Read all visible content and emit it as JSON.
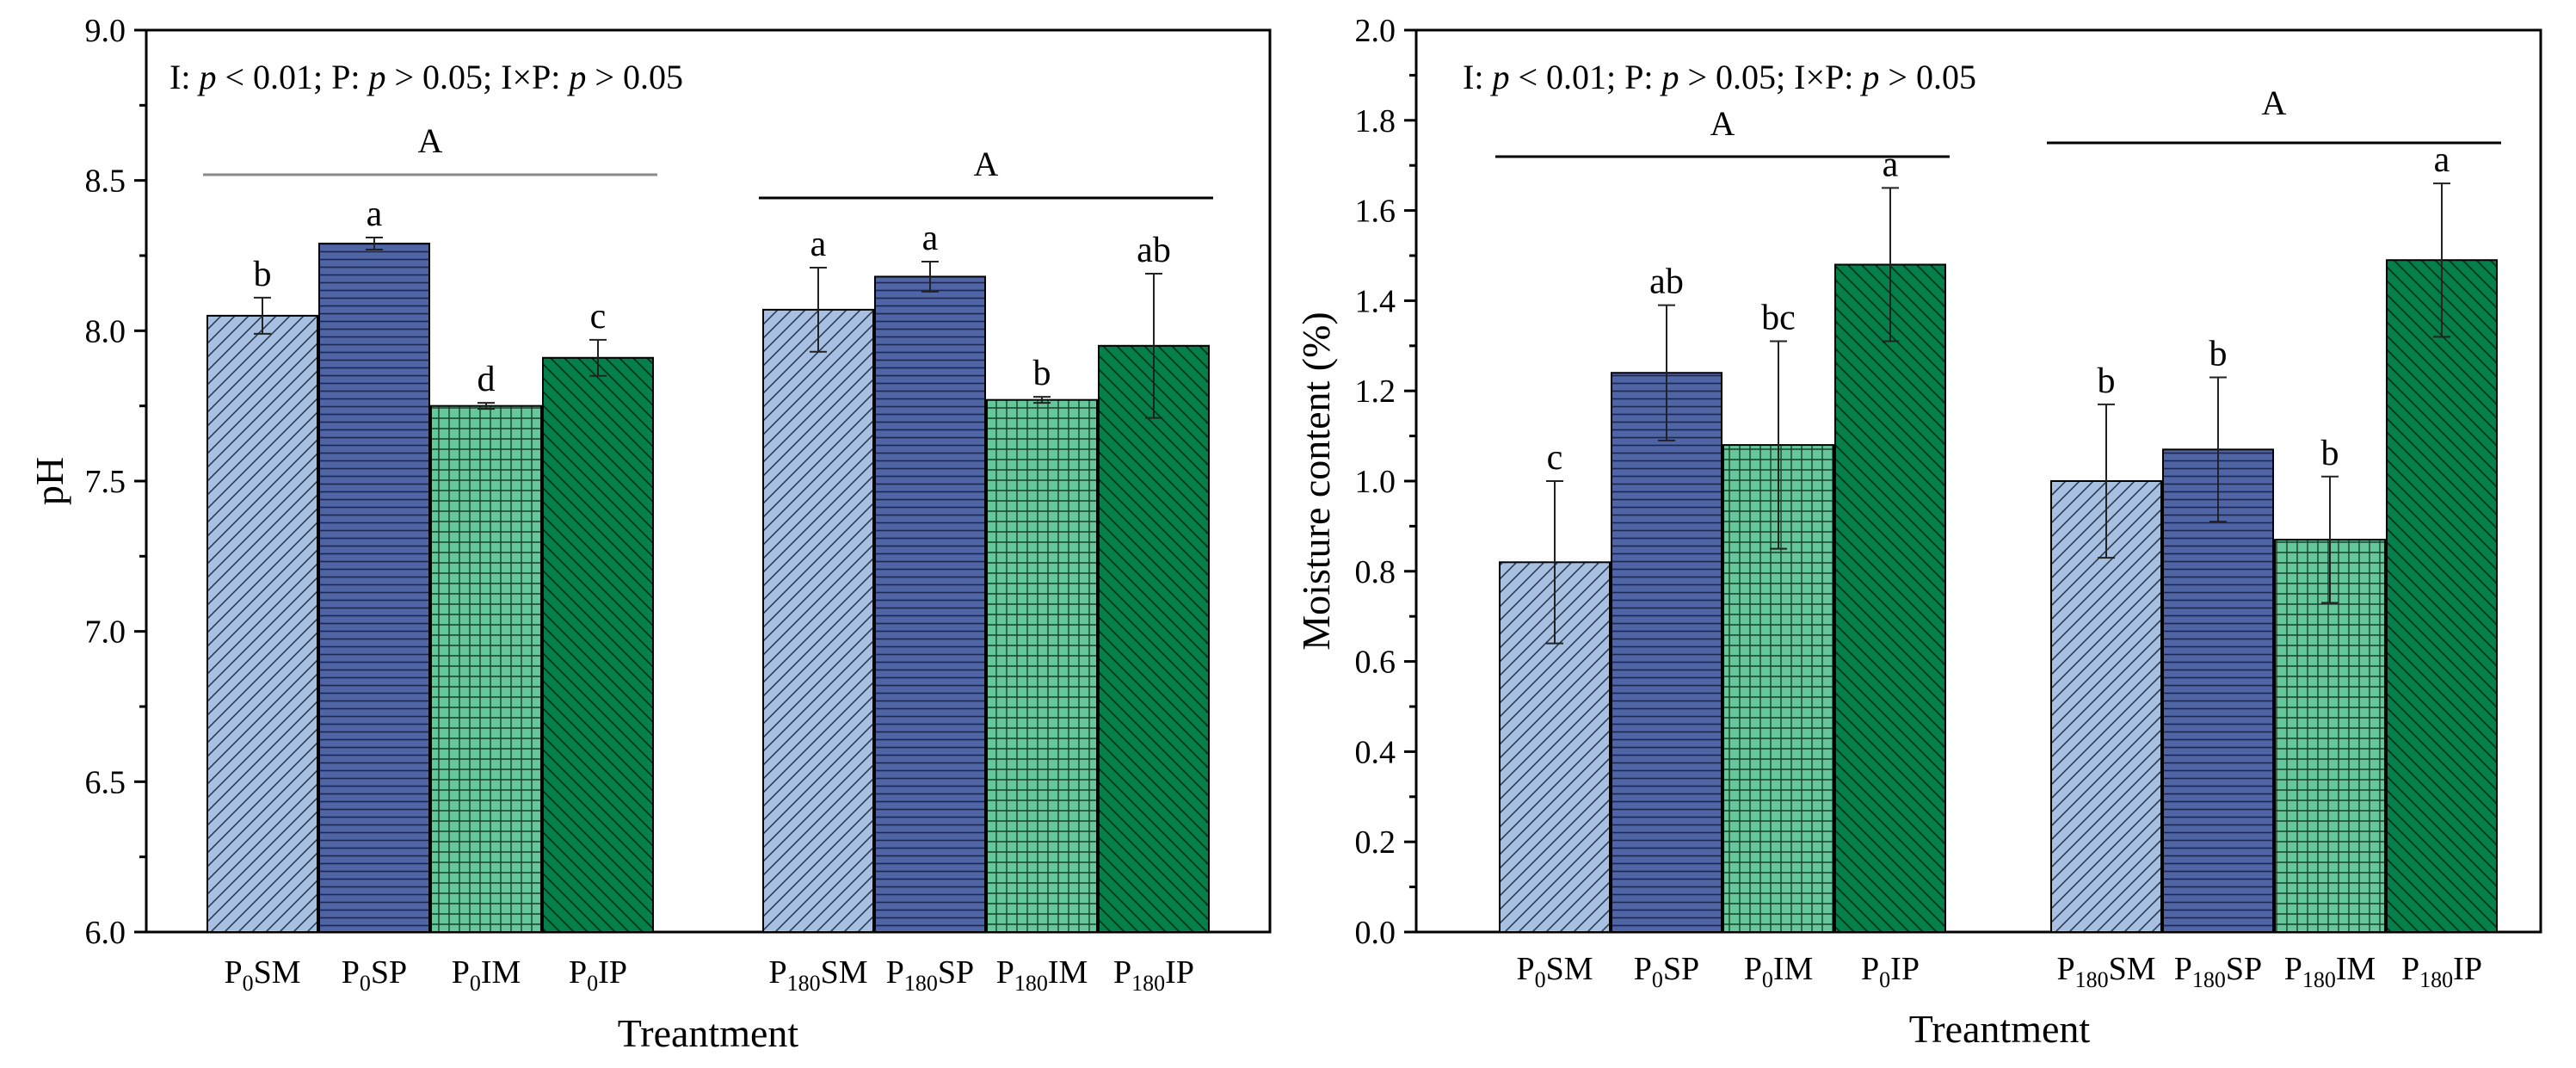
{
  "chart_data": [
    {
      "type": "bar",
      "title": "",
      "xlabel": "Treantment",
      "ylabel": "pH",
      "ylim": [
        6.0,
        9.0
      ],
      "yticks": [
        "6.0",
        "6.5",
        "7.0",
        "7.5",
        "8.0",
        "8.5",
        "9.0"
      ],
      "stats_text": {
        "a": "I: ",
        "b": "p",
        "c": " < 0.01; P: ",
        "d": "p",
        "e": " > 0.05; I×P: ",
        "f": "p",
        "g": " > 0.05"
      },
      "groups": [
        {
          "group_letter": "A",
          "bars": [
            {
              "sub": "0",
              "suffix": "SM",
              "value": 8.05,
              "error": 0.06,
              "letter": "b",
              "pattern": "diag-light"
            },
            {
              "sub": "0",
              "suffix": "SP",
              "value": 8.29,
              "error": 0.02,
              "letter": "a",
              "pattern": "horiz-blue"
            },
            {
              "sub": "0",
              "suffix": "IM",
              "value": 7.75,
              "error": 0.01,
              "letter": "d",
              "pattern": "grid-green"
            },
            {
              "sub": "0",
              "suffix": "IP",
              "value": 7.91,
              "error": 0.06,
              "letter": "c",
              "pattern": "diag-dark"
            }
          ]
        },
        {
          "group_letter": "A",
          "bars": [
            {
              "sub": "180",
              "suffix": "SM",
              "value": 8.07,
              "error": 0.14,
              "letter": "a",
              "pattern": "diag-light"
            },
            {
              "sub": "180",
              "suffix": "SP",
              "value": 8.18,
              "error": 0.05,
              "letter": "a",
              "pattern": "horiz-blue"
            },
            {
              "sub": "180",
              "suffix": "IM",
              "value": 7.77,
              "error": 0.01,
              "letter": "b",
              "pattern": "grid-green"
            },
            {
              "sub": "180",
              "suffix": "IP",
              "value": 7.95,
              "error": 0.24,
              "letter": "ab",
              "pattern": "diag-dark"
            }
          ]
        }
      ]
    },
    {
      "type": "bar",
      "title": "",
      "xlabel": "Treantment",
      "ylabel": "Moisture content (%)",
      "ylim": [
        0.0,
        2.0
      ],
      "yticks": [
        "0.0",
        "0.2",
        "0.4",
        "0.6",
        "0.8",
        "1.0",
        "1.2",
        "1.4",
        "1.6",
        "1.8",
        "2.0"
      ],
      "stats_text": {
        "a": "I: ",
        "b": "p",
        "c": " < 0.01; P: ",
        "d": "p",
        "e": " > 0.05; I×P: ",
        "f": "p",
        "g": " > 0.05"
      },
      "groups": [
        {
          "group_letter": "A",
          "bars": [
            {
              "sub": "0",
              "suffix": "SM",
              "value": 0.82,
              "error": 0.18,
              "letter": "c",
              "pattern": "diag-light"
            },
            {
              "sub": "0",
              "suffix": "SP",
              "value": 1.24,
              "error": 0.15,
              "letter": "ab",
              "pattern": "horiz-blue"
            },
            {
              "sub": "0",
              "suffix": "IM",
              "value": 1.08,
              "error": 0.23,
              "letter": "bc",
              "pattern": "grid-green"
            },
            {
              "sub": "0",
              "suffix": "IP",
              "value": 1.48,
              "error": 0.17,
              "letter": "a",
              "pattern": "diag-dark"
            }
          ]
        },
        {
          "group_letter": "A",
          "bars": [
            {
              "sub": "180",
              "suffix": "SM",
              "value": 1.0,
              "error": 0.17,
              "letter": "b",
              "pattern": "diag-light"
            },
            {
              "sub": "180",
              "suffix": "SP",
              "value": 1.07,
              "error": 0.16,
              "letter": "b",
              "pattern": "horiz-blue"
            },
            {
              "sub": "180",
              "suffix": "IM",
              "value": 0.87,
              "error": 0.14,
              "letter": "b",
              "pattern": "grid-green"
            },
            {
              "sub": "180",
              "suffix": "IP",
              "value": 1.49,
              "error": 0.17,
              "letter": "a",
              "pattern": "diag-dark"
            }
          ]
        }
      ]
    }
  ],
  "colors": {
    "light_blue": "#a7bfe0",
    "dark_blue": "#5065a6",
    "light_green": "#66c89a",
    "dark_green": "#06804a",
    "group_line_left": "#8a8a8a",
    "group_line_default": "#000000"
  }
}
